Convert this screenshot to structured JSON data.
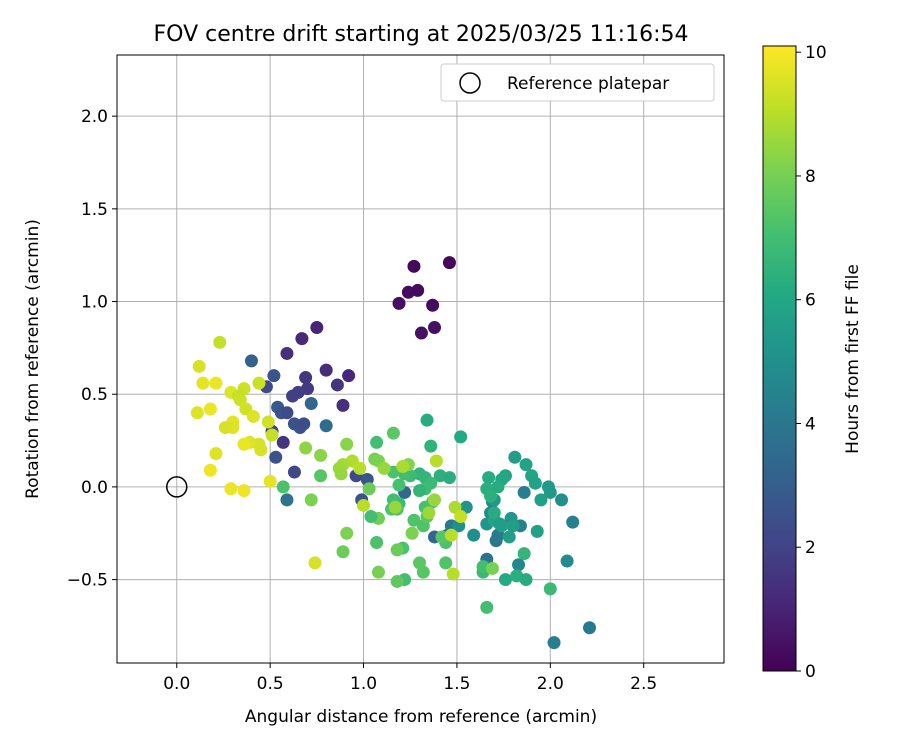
{
  "chart_data": {
    "type": "scatter",
    "title": "FOV centre drift starting at 2025/03/25 11:16:54",
    "xlabel": "Angular distance from reference (arcmin)",
    "ylabel": "Rotation from reference (arcmin)",
    "xlim": [
      -0.32,
      2.93
    ],
    "ylim": [
      -0.95,
      2.33
    ],
    "x_ticks": [
      0.0,
      0.5,
      1.0,
      1.5,
      2.0,
      2.5
    ],
    "x_tick_labels": [
      "0.0",
      "0.5",
      "1.0",
      "1.5",
      "2.0",
      "2.5"
    ],
    "y_ticks": [
      -0.5,
      0.0,
      0.5,
      1.0,
      1.5,
      2.0
    ],
    "y_tick_labels": [
      "−0.5",
      "0.0",
      "0.5",
      "1.0",
      "1.5",
      "2.0"
    ],
    "grid": true,
    "legend": {
      "placement": "top-right",
      "entries": [
        "Reference platepar"
      ]
    },
    "reference": {
      "x": 0.0,
      "y": 0.0,
      "label": "Reference platepar"
    },
    "colorbar": {
      "label": "Hours from first FF file",
      "min": 0,
      "max": 10.1,
      "ticks": [
        0,
        2,
        4,
        6,
        8,
        10
      ],
      "tick_labels": [
        "0",
        "2",
        "4",
        "6",
        "8",
        "10"
      ],
      "colormap": "viridis"
    },
    "points": [
      {
        "x": 1.27,
        "y": 1.19,
        "h": 0.2
      },
      {
        "x": 1.46,
        "y": 1.21,
        "h": 0.2
      },
      {
        "x": 1.29,
        "y": 1.06,
        "h": 0.3
      },
      {
        "x": 1.24,
        "y": 1.05,
        "h": 0.3
      },
      {
        "x": 1.19,
        "y": 0.99,
        "h": 0.4
      },
      {
        "x": 1.37,
        "y": 0.98,
        "h": 0.3
      },
      {
        "x": 1.38,
        "y": 0.86,
        "h": 0.4
      },
      {
        "x": 1.31,
        "y": 0.83,
        "h": 0.5
      },
      {
        "x": 0.75,
        "y": 0.86,
        "h": 1.0
      },
      {
        "x": 0.67,
        "y": 0.8,
        "h": 1.2
      },
      {
        "x": 0.59,
        "y": 0.72,
        "h": 1.4
      },
      {
        "x": 0.8,
        "y": 0.63,
        "h": 1.3
      },
      {
        "x": 0.92,
        "y": 0.6,
        "h": 1.1
      },
      {
        "x": 0.69,
        "y": 0.59,
        "h": 1.6
      },
      {
        "x": 0.86,
        "y": 0.55,
        "h": 1.5
      },
      {
        "x": 0.7,
        "y": 0.53,
        "h": 1.7
      },
      {
        "x": 0.65,
        "y": 0.51,
        "h": 1.8
      },
      {
        "x": 0.62,
        "y": 0.49,
        "h": 1.9
      },
      {
        "x": 0.89,
        "y": 0.44,
        "h": 1.4
      },
      {
        "x": 0.52,
        "y": 0.6,
        "h": 2.6
      },
      {
        "x": 0.4,
        "y": 0.68,
        "h": 3.2
      },
      {
        "x": 0.48,
        "y": 0.54,
        "h": 2.2
      },
      {
        "x": 0.54,
        "y": 0.43,
        "h": 2.8
      },
      {
        "x": 0.56,
        "y": 0.4,
        "h": 2.6
      },
      {
        "x": 0.59,
        "y": 0.4,
        "h": 2.3
      },
      {
        "x": 0.63,
        "y": 0.34,
        "h": 2.6
      },
      {
        "x": 0.66,
        "y": 0.32,
        "h": 2.5
      },
      {
        "x": 0.68,
        "y": 0.34,
        "h": 2.4
      },
      {
        "x": 0.72,
        "y": 0.45,
        "h": 3.3
      },
      {
        "x": 0.8,
        "y": 0.33,
        "h": 3.6
      },
      {
        "x": 0.57,
        "y": 0.24,
        "h": 1.5
      },
      {
        "x": 0.51,
        "y": 0.3,
        "h": 2.0
      },
      {
        "x": 0.53,
        "y": 0.16,
        "h": 2.6
      },
      {
        "x": 0.63,
        "y": 0.08,
        "h": 2.2
      },
      {
        "x": 0.59,
        "y": -0.07,
        "h": 3.8
      },
      {
        "x": 0.96,
        "y": 0.06,
        "h": 2.3
      },
      {
        "x": 0.99,
        "y": -0.07,
        "h": 2.6
      },
      {
        "x": 1.02,
        "y": 0.04,
        "h": 2.7
      },
      {
        "x": 1.22,
        "y": -0.03,
        "h": 3.3
      },
      {
        "x": 1.38,
        "y": -0.27,
        "h": 3.3
      },
      {
        "x": 1.45,
        "y": -0.26,
        "h": 3.6
      },
      {
        "x": 1.47,
        "y": -0.21,
        "h": 4.0
      },
      {
        "x": 1.66,
        "y": -0.39,
        "h": 3.8
      },
      {
        "x": 1.72,
        "y": -0.26,
        "h": 4.2
      },
      {
        "x": 1.71,
        "y": -0.29,
        "h": 4.0
      },
      {
        "x": 1.86,
        "y": -0.03,
        "h": 4.3
      },
      {
        "x": 1.84,
        "y": -0.21,
        "h": 4.4
      },
      {
        "x": 2.12,
        "y": -0.19,
        "h": 4.4
      },
      {
        "x": 2.09,
        "y": -0.4,
        "h": 4.8
      },
      {
        "x": 2.21,
        "y": -0.76,
        "h": 4.1
      },
      {
        "x": 2.02,
        "y": -0.84,
        "h": 4.3
      },
      {
        "x": 1.83,
        "y": -0.42,
        "h": 4.6
      },
      {
        "x": 1.69,
        "y": -0.08,
        "h": 4.6
      },
      {
        "x": 1.68,
        "y": -0.14,
        "h": 4.8
      },
      {
        "x": 1.59,
        "y": -0.26,
        "h": 5.0
      },
      {
        "x": 1.51,
        "y": -0.21,
        "h": 5.0
      },
      {
        "x": 1.66,
        "y": -0.2,
        "h": 5.2
      },
      {
        "x": 1.55,
        "y": -0.11,
        "h": 5.2
      },
      {
        "x": 1.7,
        "y": -0.07,
        "h": 5.4
      },
      {
        "x": 1.79,
        "y": -0.17,
        "h": 5.2
      },
      {
        "x": 1.8,
        "y": -0.21,
        "h": 5.6
      },
      {
        "x": 1.74,
        "y": -0.21,
        "h": 5.8
      },
      {
        "x": 1.78,
        "y": -0.27,
        "h": 5.6
      },
      {
        "x": 1.7,
        "y": -0.18,
        "h": 5.9
      },
      {
        "x": 1.73,
        "y": -0.2,
        "h": 5.6
      },
      {
        "x": 1.81,
        "y": 0.16,
        "h": 5.6
      },
      {
        "x": 1.87,
        "y": 0.12,
        "h": 5.8
      },
      {
        "x": 1.9,
        "y": 0.06,
        "h": 5.9
      },
      {
        "x": 1.92,
        "y": 0.02,
        "h": 5.8
      },
      {
        "x": 1.99,
        "y": 0.0,
        "h": 5.5
      },
      {
        "x": 2.0,
        "y": -0.03,
        "h": 5.4
      },
      {
        "x": 2.06,
        "y": -0.07,
        "h": 5.0
      },
      {
        "x": 1.95,
        "y": -0.07,
        "h": 5.7
      },
      {
        "x": 1.93,
        "y": -0.24,
        "h": 5.7
      },
      {
        "x": 1.76,
        "y": 0.06,
        "h": 5.9
      },
      {
        "x": 1.74,
        "y": 0.04,
        "h": 6.0
      },
      {
        "x": 1.72,
        "y": 0.0,
        "h": 6.2
      },
      {
        "x": 1.67,
        "y": 0.05,
        "h": 6.2
      },
      {
        "x": 1.66,
        "y": -0.01,
        "h": 6.3
      },
      {
        "x": 1.68,
        "y": -0.05,
        "h": 6.4
      },
      {
        "x": 1.7,
        "y": -0.14,
        "h": 6.2
      },
      {
        "x": 1.76,
        "y": -0.5,
        "h": 6.1
      },
      {
        "x": 1.82,
        "y": -0.48,
        "h": 6.3
      },
      {
        "x": 1.87,
        "y": -0.5,
        "h": 6.2
      },
      {
        "x": 1.86,
        "y": -0.36,
        "h": 6.6
      },
      {
        "x": 2.0,
        "y": -0.55,
        "h": 6.8
      },
      {
        "x": 1.66,
        "y": -0.65,
        "h": 7.0
      },
      {
        "x": 1.64,
        "y": -0.46,
        "h": 6.8
      },
      {
        "x": 1.64,
        "y": -0.43,
        "h": 7.0
      },
      {
        "x": 1.69,
        "y": -0.44,
        "h": 8.0
      },
      {
        "x": 1.52,
        "y": 0.27,
        "h": 6.1
      },
      {
        "x": 1.34,
        "y": 0.36,
        "h": 6.2
      },
      {
        "x": 1.36,
        "y": 0.22,
        "h": 6.5
      },
      {
        "x": 1.41,
        "y": 0.06,
        "h": 6.4
      },
      {
        "x": 1.46,
        "y": 0.05,
        "h": 6.3
      },
      {
        "x": 1.33,
        "y": 0.05,
        "h": 6.6
      },
      {
        "x": 1.3,
        "y": 0.07,
        "h": 6.6
      },
      {
        "x": 1.36,
        "y": 0.02,
        "h": 6.8
      },
      {
        "x": 1.33,
        "y": -0.01,
        "h": 6.9
      },
      {
        "x": 1.3,
        "y": -0.02,
        "h": 6.6
      },
      {
        "x": 1.25,
        "y": 0.06,
        "h": 6.9
      },
      {
        "x": 1.22,
        "y": 0.07,
        "h": 7.0
      },
      {
        "x": 1.19,
        "y": 0.01,
        "h": 7.1
      },
      {
        "x": 1.16,
        "y": 0.08,
        "h": 7.2
      },
      {
        "x": 1.19,
        "y": -0.09,
        "h": 6.9
      },
      {
        "x": 1.16,
        "y": -0.07,
        "h": 7.0
      },
      {
        "x": 1.15,
        "y": -0.12,
        "h": 7.3
      },
      {
        "x": 1.18,
        "y": -0.12,
        "h": 7.2
      },
      {
        "x": 1.33,
        "y": -0.11,
        "h": 7.1
      },
      {
        "x": 1.37,
        "y": -0.08,
        "h": 7.2
      },
      {
        "x": 1.27,
        "y": -0.18,
        "h": 7.3
      },
      {
        "x": 1.32,
        "y": -0.21,
        "h": 7.3
      },
      {
        "x": 1.34,
        "y": -0.16,
        "h": 7.5
      },
      {
        "x": 1.44,
        "y": -0.3,
        "h": 7.2
      },
      {
        "x": 1.42,
        "y": -0.27,
        "h": 7.4
      },
      {
        "x": 1.44,
        "y": -0.41,
        "h": 7.3
      },
      {
        "x": 1.32,
        "y": -0.46,
        "h": 7.4
      },
      {
        "x": 1.3,
        "y": -0.41,
        "h": 7.5
      },
      {
        "x": 1.22,
        "y": -0.5,
        "h": 7.0
      },
      {
        "x": 1.21,
        "y": -0.33,
        "h": 7.2
      },
      {
        "x": 1.18,
        "y": -0.34,
        "h": 7.8
      },
      {
        "x": 1.07,
        "y": -0.3,
        "h": 7.2
      },
      {
        "x": 1.08,
        "y": -0.17,
        "h": 7.9
      },
      {
        "x": 1.04,
        "y": -0.16,
        "h": 7.0
      },
      {
        "x": 1.08,
        "y": -0.46,
        "h": 8.0
      },
      {
        "x": 1.18,
        "y": -0.51,
        "h": 7.6
      },
      {
        "x": 1.26,
        "y": -0.25,
        "h": 8.1
      },
      {
        "x": 1.16,
        "y": 0.29,
        "h": 7.5
      },
      {
        "x": 1.07,
        "y": 0.24,
        "h": 7.0
      },
      {
        "x": 1.06,
        "y": 0.15,
        "h": 8.0
      },
      {
        "x": 1.08,
        "y": 0.14,
        "h": 8.1
      },
      {
        "x": 1.11,
        "y": 0.1,
        "h": 8.5
      },
      {
        "x": 1.24,
        "y": 0.12,
        "h": 8.2
      },
      {
        "x": 1.21,
        "y": 0.11,
        "h": 8.8
      },
      {
        "x": 1.38,
        "y": -0.07,
        "h": 8.5
      },
      {
        "x": 1.35,
        "y": -0.14,
        "h": 8.6
      },
      {
        "x": 1.17,
        "y": -0.11,
        "h": 8.5
      },
      {
        "x": 1.0,
        "y": -0.1,
        "h": 9.0
      },
      {
        "x": 1.03,
        "y": -0.01,
        "h": 7.8
      },
      {
        "x": 0.91,
        "y": 0.23,
        "h": 8.3
      },
      {
        "x": 0.94,
        "y": 0.14,
        "h": 8.9
      },
      {
        "x": 0.89,
        "y": 0.12,
        "h": 8.7
      },
      {
        "x": 0.87,
        "y": 0.1,
        "h": 8.6
      },
      {
        "x": 0.98,
        "y": 0.1,
        "h": 9.0
      },
      {
        "x": 0.88,
        "y": 0.07,
        "h": 8.5
      },
      {
        "x": 0.77,
        "y": 0.17,
        "h": 8.3
      },
      {
        "x": 0.69,
        "y": 0.21,
        "h": 8.4
      },
      {
        "x": 0.77,
        "y": 0.06,
        "h": 7.4
      },
      {
        "x": 0.72,
        "y": -0.07,
        "h": 8.1
      },
      {
        "x": 0.91,
        "y": -0.25,
        "h": 8.1
      },
      {
        "x": 0.89,
        "y": -0.35,
        "h": 7.8
      },
      {
        "x": 0.74,
        "y": -0.41,
        "h": 9.5
      },
      {
        "x": 1.39,
        "y": 0.14,
        "h": 9.0
      },
      {
        "x": 1.49,
        "y": -0.11,
        "h": 8.8
      },
      {
        "x": 1.52,
        "y": -0.16,
        "h": 9.2
      },
      {
        "x": 1.48,
        "y": -0.47,
        "h": 9.0
      },
      {
        "x": 1.47,
        "y": -0.26,
        "h": 9.0
      },
      {
        "x": 0.57,
        "y": 0.0,
        "h": 7.2
      },
      {
        "x": 0.23,
        "y": 0.78,
        "h": 9.2
      },
      {
        "x": 0.12,
        "y": 0.65,
        "h": 9.5
      },
      {
        "x": 0.14,
        "y": 0.56,
        "h": 9.7
      },
      {
        "x": 0.21,
        "y": 0.56,
        "h": 9.8
      },
      {
        "x": 0.29,
        "y": 0.51,
        "h": 9.6
      },
      {
        "x": 0.36,
        "y": 0.53,
        "h": 9.3
      },
      {
        "x": 0.33,
        "y": 0.49,
        "h": 9.2
      },
      {
        "x": 0.34,
        "y": 0.47,
        "h": 9.3
      },
      {
        "x": 0.37,
        "y": 0.42,
        "h": 9.4
      },
      {
        "x": 0.44,
        "y": 0.56,
        "h": 9.3
      },
      {
        "x": 0.41,
        "y": 0.38,
        "h": 9.6
      },
      {
        "x": 0.49,
        "y": 0.35,
        "h": 9.4
      },
      {
        "x": 0.51,
        "y": 0.28,
        "h": 9.2
      },
      {
        "x": 0.44,
        "y": 0.23,
        "h": 9.5
      },
      {
        "x": 0.45,
        "y": 0.2,
        "h": 9.5
      },
      {
        "x": 0.39,
        "y": 0.24,
        "h": 9.6
      },
      {
        "x": 0.36,
        "y": 0.23,
        "h": 9.8
      },
      {
        "x": 0.3,
        "y": 0.35,
        "h": 9.7
      },
      {
        "x": 0.3,
        "y": 0.32,
        "h": 9.6
      },
      {
        "x": 0.26,
        "y": 0.32,
        "h": 9.5
      },
      {
        "x": 0.11,
        "y": 0.4,
        "h": 9.6
      },
      {
        "x": 0.18,
        "y": 0.42,
        "h": 9.8
      },
      {
        "x": 0.21,
        "y": 0.18,
        "h": 9.6
      },
      {
        "x": 0.18,
        "y": 0.09,
        "h": 9.9
      },
      {
        "x": 0.29,
        "y": -0.01,
        "h": 9.8
      },
      {
        "x": 0.36,
        "y": -0.02,
        "h": 9.9
      },
      {
        "x": 0.5,
        "y": 0.03,
        "h": 9.7
      }
    ]
  }
}
